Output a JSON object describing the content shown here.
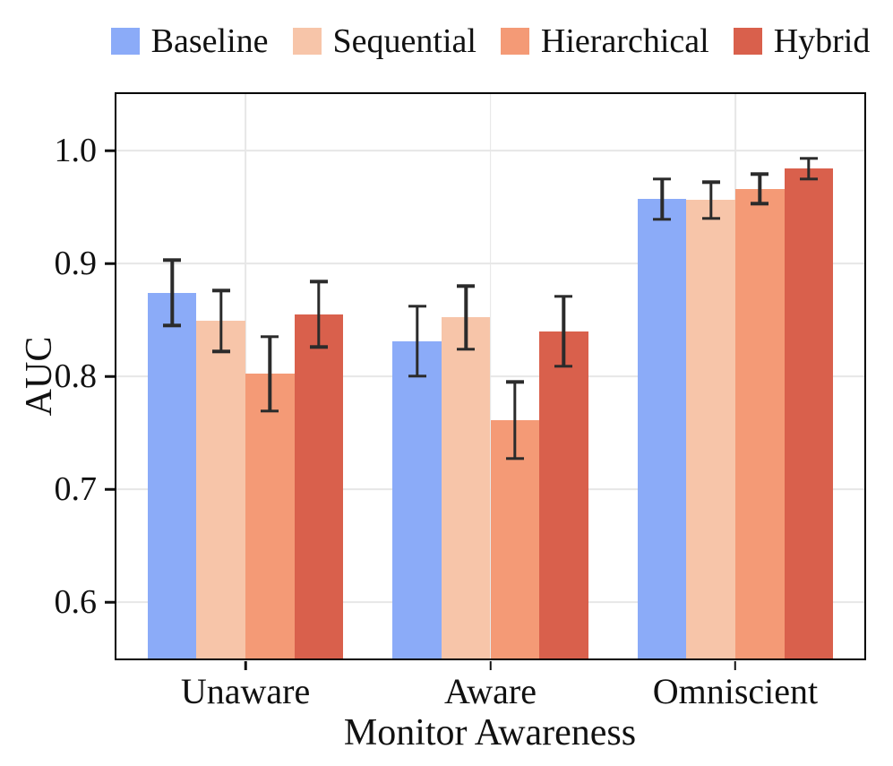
{
  "chart_data": {
    "type": "bar",
    "title": "",
    "xlabel": "Monitor Awareness",
    "ylabel": "AUC",
    "categories": [
      "Unaware",
      "Aware",
      "Omniscient"
    ],
    "series": [
      {
        "name": "Baseline",
        "color": "#8babf8",
        "values": [
          0.874,
          0.831,
          0.957
        ],
        "errors": [
          0.029,
          0.031,
          0.018
        ]
      },
      {
        "name": "Sequential",
        "color": "#f7c5a9",
        "values": [
          0.849,
          0.852,
          0.956
        ],
        "errors": [
          0.027,
          0.028,
          0.016
        ]
      },
      {
        "name": "Hierarchical",
        "color": "#f49a76",
        "values": [
          0.802,
          0.761,
          0.966
        ],
        "errors": [
          0.033,
          0.034,
          0.013
        ]
      },
      {
        "name": "Hybrid",
        "color": "#d9604c",
        "values": [
          0.855,
          0.84,
          0.984
        ],
        "errors": [
          0.029,
          0.031,
          0.009
        ]
      }
    ],
    "ylim": [
      0.55,
      1.05
    ],
    "yticks": [
      0.6,
      0.7,
      0.8,
      0.9,
      1.0
    ],
    "grid": true,
    "legend_position": "top",
    "error_bar_color": "#2b2b2b",
    "frame_color": "#000000",
    "grid_color": "#e7e7e7",
    "category_center_pct": [
      17.25,
      50,
      82.75
    ],
    "bar_width_pct": 6.535
  }
}
